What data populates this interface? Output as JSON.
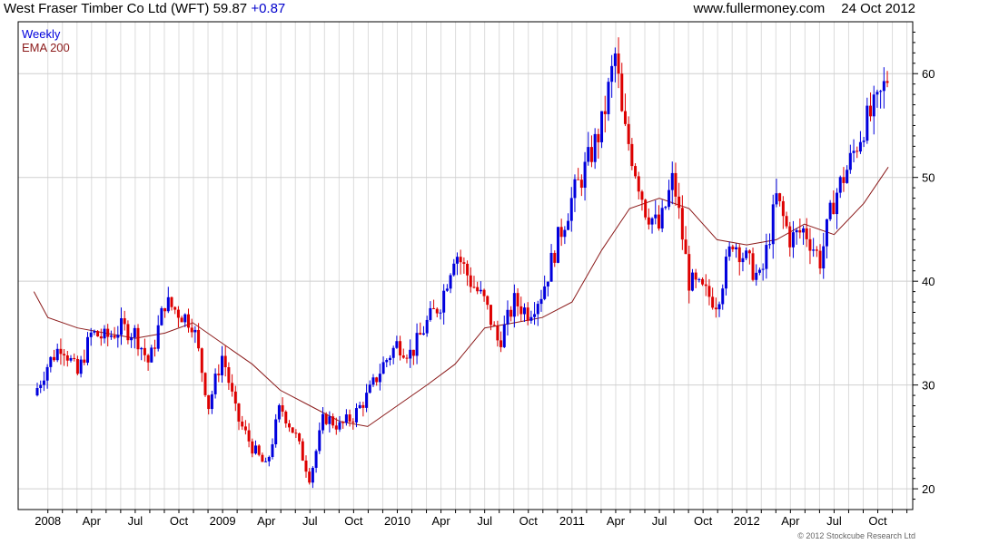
{
  "header": {
    "title": "West Fraser Timber Co Ltd (WFT)",
    "price": "59.87",
    "change": "+0.87",
    "site": "www.fullermoney.com",
    "date": "24 Oct 2012"
  },
  "footer": {
    "copyright": "© 2012 Stockcube Research Ltd"
  },
  "colors": {
    "up": "#0000dd",
    "down": "#dd0000",
    "ema": "#8b1a1a",
    "grid": "#dcdcdc",
    "axis": "#000000"
  },
  "chart_data": {
    "type": "candlestick",
    "title": "West Fraser Timber Co Ltd (WFT)",
    "interval_label": "Weekly",
    "x_tick_labels": [
      "2008",
      "Apr",
      "Jul",
      "Oct",
      "2009",
      "Apr",
      "Jul",
      "Oct",
      "2010",
      "Apr",
      "Jul",
      "Oct",
      "2011",
      "Apr",
      "Jul",
      "Oct",
      "2012",
      "Apr",
      "Jul",
      "Oct"
    ],
    "x_range": [
      "2007-12",
      "2012-10"
    ],
    "y_ticks": [
      20,
      30,
      40,
      50,
      60
    ],
    "ylim": [
      18,
      65
    ],
    "y_axis_position": "right",
    "grid": true,
    "legend_position": "top-left",
    "series": [
      {
        "name": "Weekly",
        "kind": "price",
        "x": [
          2007.92,
          2008.0,
          2008.08,
          2008.17,
          2008.25,
          2008.33,
          2008.42,
          2008.5,
          2008.58,
          2008.67,
          2008.75,
          2008.83,
          2008.92,
          2009.0,
          2009.08,
          2009.17,
          2009.25,
          2009.33,
          2009.42,
          2009.5,
          2009.58,
          2009.67,
          2009.75,
          2009.83,
          2009.92,
          2010.0,
          2010.08,
          2010.17,
          2010.25,
          2010.33,
          2010.42,
          2010.5,
          2010.58,
          2010.67,
          2010.75,
          2010.83,
          2010.92,
          2011.0,
          2011.08,
          2011.17,
          2011.25,
          2011.29,
          2011.33,
          2011.42,
          2011.5,
          2011.58,
          2011.67,
          2011.75,
          2011.83,
          2011.92,
          2012.0,
          2012.08,
          2012.17,
          2012.25,
          2012.33,
          2012.42,
          2012.5,
          2012.58,
          2012.67,
          2012.75,
          2012.81
        ],
        "values": [
          29,
          32,
          34,
          31,
          35,
          34.5,
          35.5,
          35,
          32,
          38,
          37,
          36,
          28,
          33,
          27,
          24,
          22,
          28,
          25,
          21,
          27,
          26,
          27,
          29,
          32,
          34,
          33,
          36,
          38,
          43,
          40,
          38,
          34,
          38,
          37,
          39,
          44,
          48,
          51,
          55,
          62,
          55,
          53,
          47,
          45,
          50,
          40,
          39,
          38,
          44,
          42,
          40,
          48,
          44,
          45,
          42,
          48,
          51,
          55,
          57,
          59.87
        ]
      },
      {
        "name": "EMA 200",
        "kind": "ema",
        "x": [
          2007.92,
          2008.0,
          2008.17,
          2008.33,
          2008.5,
          2008.67,
          2008.83,
          2009.0,
          2009.17,
          2009.33,
          2009.5,
          2009.67,
          2009.83,
          2010.0,
          2010.17,
          2010.33,
          2010.5,
          2010.67,
          2010.83,
          2011.0,
          2011.17,
          2011.33,
          2011.5,
          2011.67,
          2011.83,
          2012.0,
          2012.17,
          2012.33,
          2012.5,
          2012.67,
          2012.81
        ],
        "values": [
          39,
          36.5,
          35.5,
          35,
          34.5,
          35,
          36,
          34,
          32,
          29.5,
          28,
          26.5,
          26,
          28,
          30,
          32,
          35.5,
          36,
          36.5,
          38,
          43,
          47,
          48,
          47,
          44,
          43.5,
          44,
          45.5,
          44.5,
          47.5,
          51
        ]
      }
    ]
  }
}
